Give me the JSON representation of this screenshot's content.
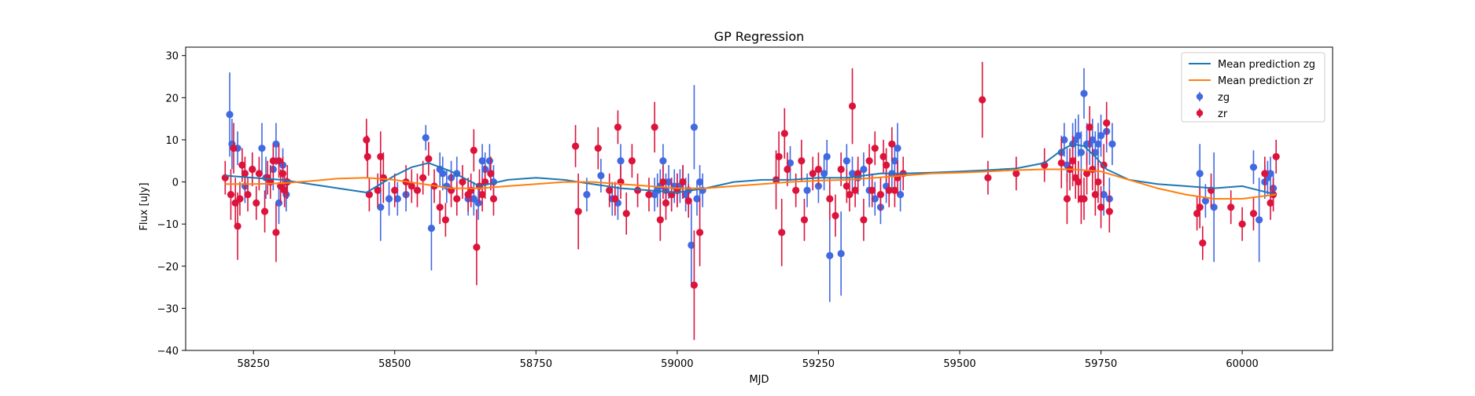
{
  "chart_data": {
    "type": "scatter",
    "title": "GP Regression",
    "xlabel": "MJD",
    "ylabel": "Flux [uJy]",
    "xlim": [
      58130,
      60160
    ],
    "ylim": [
      -40,
      32
    ],
    "xticks": [
      {
        "value": 58250,
        "label": "58250"
      },
      {
        "value": 58500,
        "label": "58500"
      },
      {
        "value": 58750,
        "label": "58750"
      },
      {
        "value": 59000,
        "label": "59000"
      },
      {
        "value": 59250,
        "label": "59250"
      },
      {
        "value": 59500,
        "label": "59500"
      },
      {
        "value": 59750,
        "label": "59750"
      },
      {
        "value": 60000,
        "label": "60000"
      }
    ],
    "yticks": [
      {
        "value": 30,
        "label": "30"
      },
      {
        "value": 20,
        "label": "20"
      },
      {
        "value": 10,
        "label": "10"
      },
      {
        "value": 0,
        "label": "0"
      },
      {
        "value": -10,
        "label": "−10"
      },
      {
        "value": -20,
        "label": "−20"
      },
      {
        "value": -30,
        "label": "−30"
      },
      {
        "value": -40,
        "label": "−40"
      }
    ],
    "grid": false,
    "legend_position": "top-right",
    "series": [
      {
        "name": "Mean prediction zg",
        "kind": "line",
        "color": "#1f77b4",
        "x": [
          58200,
          58250,
          58300,
          58350,
          58400,
          58450,
          58500,
          58530,
          58560,
          58600,
          58650,
          58700,
          58750,
          58800,
          58850,
          58900,
          58950,
          59000,
          59050,
          59100,
          59150,
          59200,
          59250,
          59300,
          59330,
          59360,
          59400,
          59450,
          59500,
          59550,
          59600,
          59650,
          59680,
          59700,
          59720,
          59740,
          59760,
          59800,
          59850,
          59900,
          59950,
          60000,
          60030,
          60060
        ],
        "y": [
          1.5,
          1.0,
          0.5,
          -0.5,
          -1.5,
          -2.5,
          1.5,
          3.5,
          4.5,
          2.5,
          -1.0,
          0.5,
          1.0,
          0.5,
          -0.5,
          -1.5,
          -2.0,
          -2.5,
          -1.5,
          0,
          0.5,
          0.5,
          1.0,
          1.0,
          1.5,
          2.0,
          2.0,
          2.2,
          2.5,
          2.8,
          3.2,
          4.5,
          7.5,
          9.0,
          8.5,
          6.0,
          3.0,
          0.5,
          -0.5,
          -1.0,
          -1.5,
          -1.0,
          -2.0,
          -3.0
        ]
      },
      {
        "name": "Mean prediction zr",
        "kind": "line",
        "color": "#ff7f0e",
        "x": [
          58200,
          58250,
          58300,
          58350,
          58400,
          58450,
          58500,
          58550,
          58600,
          58650,
          58700,
          58750,
          58800,
          58850,
          58900,
          58950,
          59000,
          59050,
          59100,
          59150,
          59200,
          59250,
          59300,
          59350,
          59400,
          59450,
          59500,
          59550,
          59600,
          59650,
          59700,
          59750,
          59800,
          59850,
          59900,
          59950,
          60000,
          60030,
          60060
        ],
        "y": [
          -0.5,
          -0.5,
          -0.3,
          0.2,
          0.8,
          1.0,
          0.5,
          -0.5,
          -1.5,
          -1.5,
          -1.0,
          -0.5,
          0,
          0,
          -0.5,
          -1.0,
          -1.5,
          -1.5,
          -1.0,
          -0.5,
          0,
          0.3,
          0.5,
          1.0,
          1.5,
          2.0,
          2.2,
          2.5,
          2.8,
          3.0,
          3.0,
          2.5,
          0.5,
          -1.5,
          -3.0,
          -4.0,
          -4.0,
          -3.5,
          -3.0
        ]
      },
      {
        "name": "zg",
        "kind": "errorbar",
        "color": "#4169e1",
        "x": [
          58208,
          58212,
          58222,
          58235,
          58248,
          58265,
          58272,
          58285,
          58290,
          58295,
          58302,
          58308,
          58475,
          58490,
          58505,
          58520,
          58555,
          58565,
          58580,
          58585,
          58592,
          58600,
          58610,
          58630,
          58640,
          58648,
          58655,
          58660,
          58668,
          58675,
          58840,
          58865,
          58885,
          58895,
          58900,
          58960,
          58965,
          58970,
          58975,
          58980,
          58985,
          58990,
          58995,
          59000,
          59005,
          59010,
          59015,
          59020,
          59025,
          59030,
          59035,
          59040,
          59045,
          59200,
          59230,
          59250,
          59260,
          59265,
          59270,
          59290,
          59300,
          59310,
          59320,
          59330,
          59340,
          59350,
          59360,
          59370,
          59380,
          59385,
          59390,
          59395,
          59680,
          59685,
          59690,
          59700,
          59705,
          59710,
          59715,
          59720,
          59725,
          59730,
          59735,
          59740,
          59745,
          59750,
          59755,
          59760,
          59765,
          59770,
          59925,
          59935,
          59950,
          60020,
          60030,
          60040,
          60045,
          60050,
          60055
        ],
        "y": [
          16,
          9,
          8,
          -1,
          3,
          8,
          1,
          3,
          9,
          -5,
          4,
          -3,
          -6,
          -4,
          -4,
          -3,
          10.5,
          -11,
          3,
          2,
          -1,
          1,
          2,
          -4,
          -4,
          -5,
          5,
          3,
          5,
          0,
          -3,
          1.5,
          -4,
          -5,
          5,
          -3,
          -2,
          -1,
          5,
          -2,
          0,
          -3,
          -1,
          -2,
          -1,
          0,
          -3,
          -2,
          -15,
          13,
          -4,
          0,
          -2,
          4.5,
          -2,
          -1,
          2,
          6,
          -17.5,
          -17,
          5,
          2,
          1,
          3,
          -2,
          -4,
          -6,
          -1,
          2,
          5,
          8,
          -3,
          7,
          10,
          4,
          9,
          10,
          11,
          7,
          21,
          9,
          9,
          10,
          7,
          9,
          11,
          -3,
          12,
          -4,
          9,
          2,
          -4.5,
          -6,
          3.5,
          -9,
          0,
          1,
          2,
          -1.5
        ],
        "err": [
          10,
          6,
          4,
          4,
          4,
          6,
          5,
          5,
          5,
          5,
          4,
          4,
          8,
          4,
          4,
          4,
          3,
          10,
          4,
          4,
          4,
          4,
          4,
          4,
          4,
          4,
          4,
          4,
          4,
          4,
          4,
          4,
          4,
          4,
          4,
          4,
          4,
          4,
          4,
          4,
          4,
          4,
          4,
          4,
          4,
          4,
          4,
          4,
          10,
          10,
          4,
          4,
          4,
          4,
          4,
          4,
          4,
          4,
          11,
          10,
          4,
          4,
          4,
          4,
          4,
          4,
          4,
          4,
          4,
          4,
          6,
          4,
          4,
          4,
          4,
          5,
          5,
          5,
          5,
          6,
          5,
          5,
          5,
          5,
          5,
          5,
          5,
          5,
          5,
          5,
          7,
          4,
          13,
          4,
          10,
          4,
          4,
          4,
          4
        ]
      },
      {
        "name": "zr",
        "kind": "errorbar",
        "color": "#dc143c",
        "x": [
          58200,
          58210,
          58215,
          58218,
          58222,
          58226,
          58230,
          58235,
          58240,
          58248,
          58255,
          58260,
          58270,
          58275,
          58280,
          58285,
          58290,
          58295,
          58298,
          58302,
          58305,
          58310,
          58450,
          58452,
          58455,
          58470,
          58475,
          58480,
          58500,
          58520,
          58530,
          58540,
          58550,
          58560,
          58570,
          58580,
          58590,
          58600,
          58610,
          58620,
          58630,
          58635,
          58640,
          58645,
          58650,
          58655,
          58660,
          58670,
          58675,
          58820,
          58825,
          58860,
          58880,
          58890,
          58895,
          58900,
          58910,
          58920,
          58930,
          58950,
          58960,
          58970,
          58975,
          58980,
          58990,
          59000,
          59010,
          59020,
          59030,
          59040,
          59175,
          59180,
          59185,
          59190,
          59195,
          59210,
          59220,
          59225,
          59240,
          59250,
          59270,
          59280,
          59290,
          59300,
          59305,
          59310,
          59315,
          59320,
          59330,
          59340,
          59345,
          59350,
          59360,
          59365,
          59370,
          59375,
          59380,
          59385,
          59390,
          59400,
          59540,
          59550,
          59600,
          59650,
          59680,
          59690,
          59695,
          59700,
          59705,
          59710,
          59715,
          59720,
          59725,
          59730,
          59735,
          59740,
          59745,
          59750,
          59755,
          59760,
          59765,
          59920,
          59925,
          59930,
          59945,
          59980,
          60000,
          60020,
          60040,
          60050,
          60055,
          60060
        ],
        "y": [
          1,
          -3,
          8,
          -5,
          -10.5,
          -4,
          4,
          2,
          -3,
          3,
          -5,
          2,
          -7,
          1,
          0,
          5,
          -12,
          5,
          -1,
          2,
          -2,
          0,
          10,
          6,
          -3,
          -2,
          6,
          1,
          -2,
          0,
          -1,
          -2,
          1,
          5.5,
          -1,
          -6,
          -9,
          -2,
          -4,
          0,
          -3,
          -2,
          7.5,
          -15.5,
          -1,
          -3,
          0,
          2,
          -4,
          8.5,
          -7,
          8,
          -2,
          -4,
          13,
          0,
          -7.5,
          5,
          -2,
          -3,
          13,
          -9,
          0,
          -5,
          -3,
          -2,
          0,
          -4.5,
          -24.5,
          -12,
          0.5,
          6,
          -12,
          11.5,
          3,
          -2,
          5,
          -9,
          2,
          3,
          -4,
          -8,
          3,
          -1,
          -3,
          18,
          -2,
          2,
          -9,
          5,
          -2,
          8,
          -3,
          6,
          4,
          -2,
          9,
          -2,
          1,
          2,
          19.5,
          1,
          2,
          4,
          4.5,
          -4,
          3,
          5,
          1,
          0,
          -4,
          -4,
          2,
          13,
          3,
          -3,
          0,
          -6,
          4,
          14,
          -7,
          -7.5,
          -6,
          -14.5,
          -2,
          -6,
          -10,
          -7.5,
          2,
          -5,
          -3,
          6
        ],
        "err": [
          4,
          6,
          6,
          6,
          8,
          4,
          4,
          4,
          4,
          4,
          4,
          4,
          5,
          4,
          4,
          4,
          7,
          4,
          4,
          4,
          4,
          4,
          5,
          5,
          4,
          4,
          6,
          6,
          4,
          4,
          4,
          4,
          4,
          4,
          4,
          4,
          4,
          4,
          4,
          4,
          4,
          4,
          5,
          9,
          4,
          4,
          4,
          4,
          4,
          5,
          9,
          5,
          4,
          4,
          4,
          4,
          5,
          4,
          4,
          4,
          6,
          5,
          4,
          4,
          4,
          4,
          4,
          4,
          13,
          8,
          7,
          6,
          8,
          6,
          4,
          4,
          5,
          5,
          4,
          4,
          5,
          5,
          4,
          4,
          4,
          9,
          4,
          4,
          5,
          4,
          4,
          4,
          4,
          4,
          4,
          4,
          4,
          4,
          4,
          4,
          9,
          4,
          4,
          4,
          6,
          6,
          5,
          6,
          5,
          5,
          6,
          5,
          5,
          5,
          5,
          5,
          5,
          5,
          5,
          5,
          5,
          4,
          5,
          4,
          4,
          4,
          4,
          4,
          4,
          4,
          4,
          4
        ]
      }
    ]
  }
}
